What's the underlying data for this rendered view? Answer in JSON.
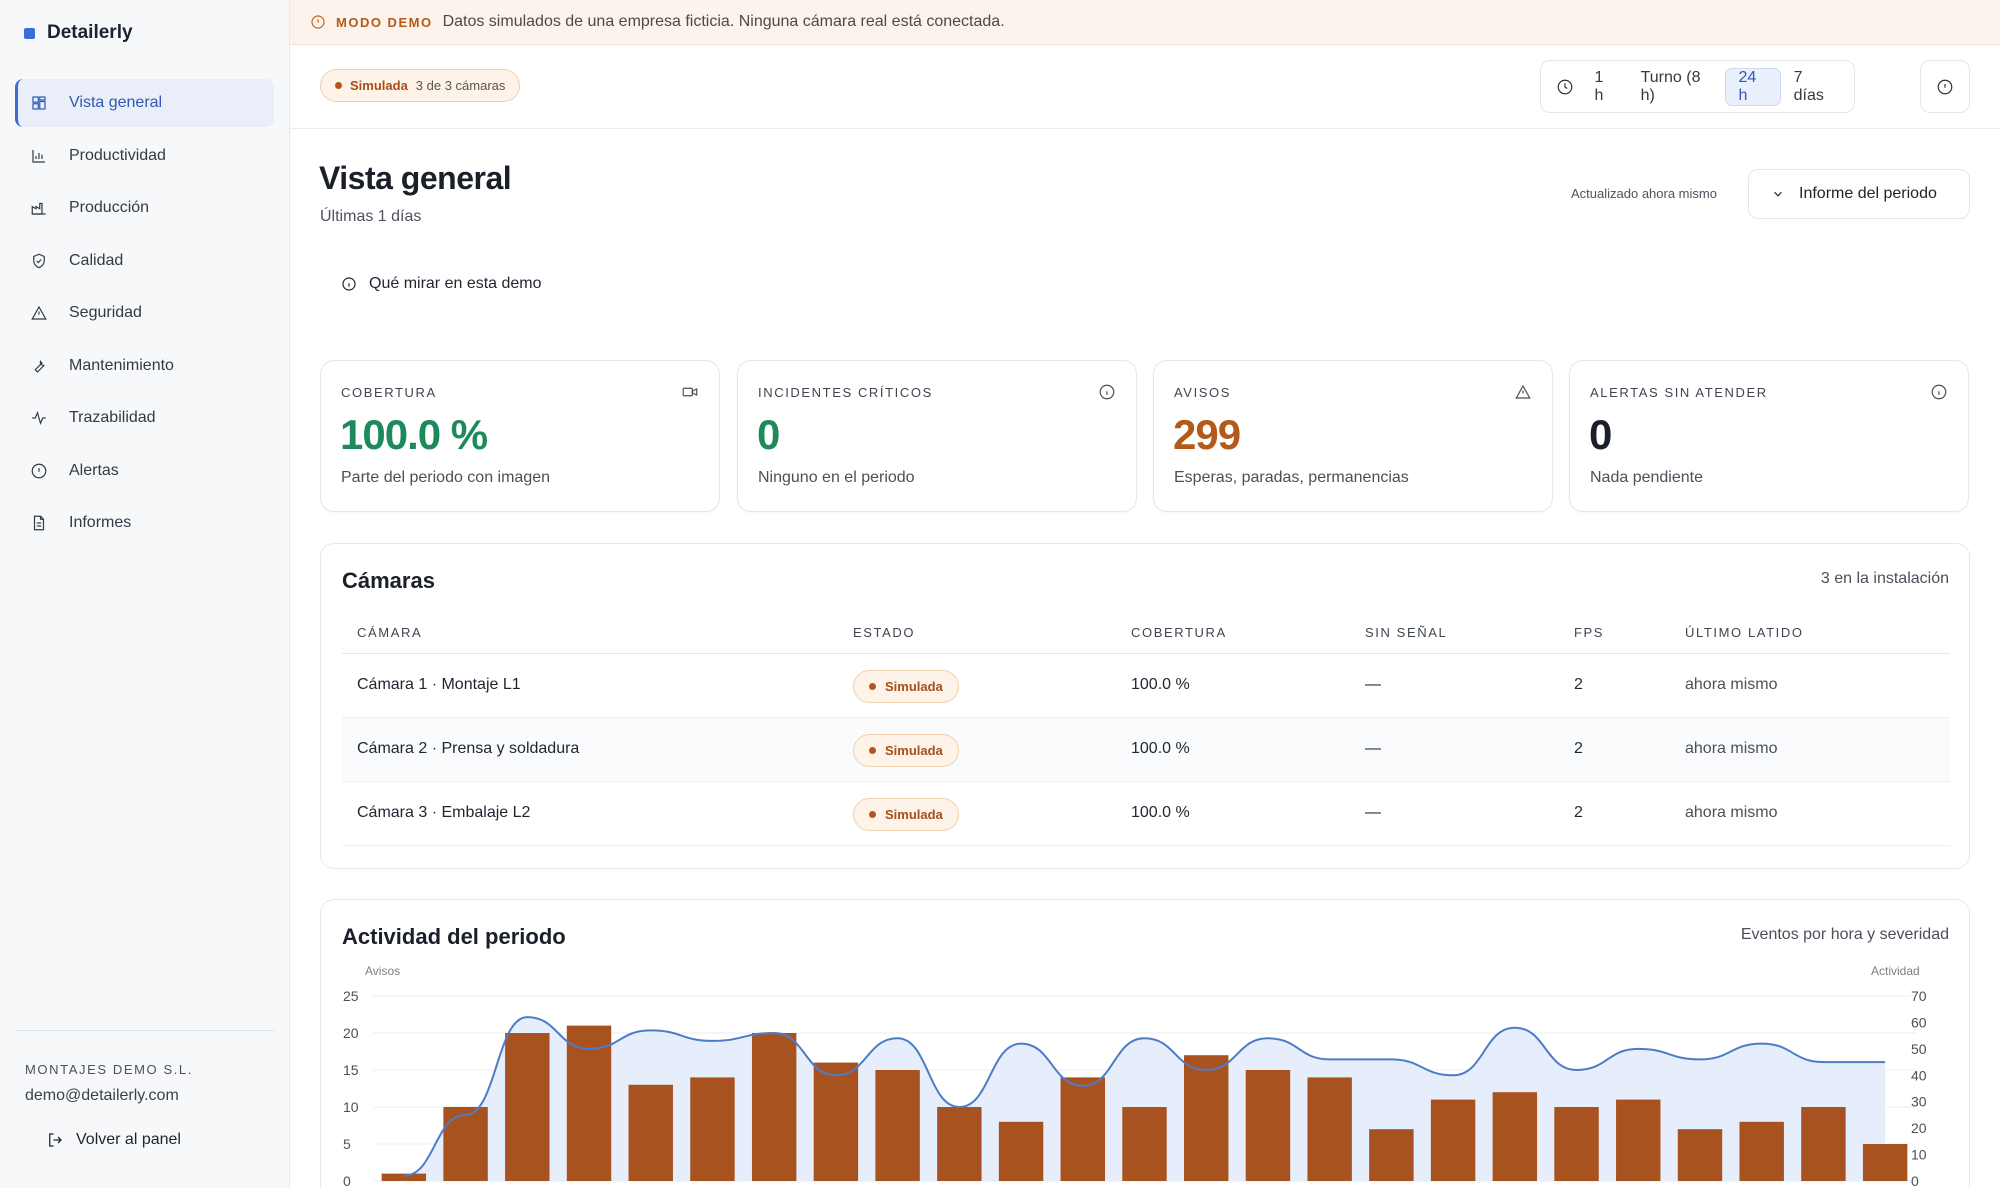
{
  "brand": {
    "name": "Detailerly",
    "color": "#3b6fd8"
  },
  "sidebar": {
    "items": [
      {
        "label": "Vista general",
        "icon": "dashboard-icon",
        "active": true
      },
      {
        "label": "Productividad",
        "icon": "bar-chart-icon"
      },
      {
        "label": "Producción",
        "icon": "factory-icon"
      },
      {
        "label": "Calidad",
        "icon": "shield-check-icon"
      },
      {
        "label": "Seguridad",
        "icon": "warning-triangle-icon"
      },
      {
        "label": "Mantenimiento",
        "icon": "wrench-icon"
      },
      {
        "label": "Trazabilidad",
        "icon": "pulse-icon"
      },
      {
        "label": "Alertas",
        "icon": "alert-circle-icon"
      },
      {
        "label": "Informes",
        "icon": "document-icon"
      }
    ],
    "company": "MONTAJES DEMO S.L.",
    "email": "demo@detailerly.com",
    "back_label": "Volver al panel"
  },
  "banner": {
    "label": "MODO DEMO",
    "text": "Datos simulados de una empresa ficticia. Ninguna cámara real está conectada."
  },
  "topbar": {
    "status_label": "Simulada",
    "status_count": "3 de 3 cámaras",
    "ranges": [
      {
        "label": "1 h"
      },
      {
        "label": "Turno (8 h)"
      },
      {
        "label": "24 h",
        "active": true
      },
      {
        "label": "7 días"
      }
    ]
  },
  "header": {
    "title": "Vista general",
    "subtitle": "Últimas 1 días",
    "updated": "Actualizado ahora mismo",
    "report_label": "Informe del periodo",
    "tip_label": "Qué mirar en esta demo"
  },
  "kpis": [
    {
      "label": "COBERTURA",
      "value": "100.0 %",
      "desc": "Parte del periodo con imagen",
      "color": "#1e8a5c",
      "icon": "video-icon"
    },
    {
      "label": "INCIDENTES CRÍTICOS",
      "value": "0",
      "desc": "Ninguno en el periodo",
      "color": "#1e8a5c",
      "icon": "info-icon"
    },
    {
      "label": "AVISOS",
      "value": "299",
      "desc": "Esperas, paradas, permanencias",
      "color": "#b35a1a",
      "icon": "warning-icon"
    },
    {
      "label": "ALERTAS SIN ATENDER",
      "value": "0",
      "desc": "Nada pendiente",
      "color": "#1a1f29",
      "icon": "info-icon"
    }
  ],
  "cameras": {
    "title": "Cámaras",
    "meta": "3 en la instalación",
    "columns": [
      "CÁMARA",
      "ESTADO",
      "COBERTURA",
      "SIN SEÑAL",
      "FPS",
      "ÚLTIMO LATIDO"
    ],
    "rows": [
      {
        "name": "Cámara 1 · Montaje L1",
        "status": "Simulada",
        "coverage": "100.0 %",
        "no_signal": "—",
        "fps": "2",
        "last": "ahora mismo"
      },
      {
        "name": "Cámara 2 · Prensa y soldadura",
        "status": "Simulada",
        "coverage": "100.0 %",
        "no_signal": "—",
        "fps": "2",
        "last": "ahora mismo"
      },
      {
        "name": "Cámara 3 · Embalaje L2",
        "status": "Simulada",
        "coverage": "100.0 %",
        "no_signal": "—",
        "fps": "2",
        "last": "ahora mismo"
      }
    ]
  },
  "activity": {
    "title": "Actividad del periodo",
    "meta": "Eventos por hora y severidad"
  },
  "chart_data": {
    "type": "bar",
    "title": "Actividad del periodo",
    "ylabel": "Avisos",
    "y2label": "Actividad",
    "ylim": [
      0,
      25
    ],
    "y2lim": [
      0,
      70
    ],
    "yticks": [
      0,
      5,
      10,
      15,
      20,
      25
    ],
    "y2ticks": [
      0,
      10,
      20,
      30,
      40,
      50,
      60,
      70
    ],
    "grid": true,
    "series": [
      {
        "name": "Avisos",
        "type": "bar",
        "color": "#a8531f",
        "values": [
          1,
          10,
          20,
          21,
          13,
          14,
          20,
          16,
          15,
          10,
          8,
          14,
          10,
          17,
          15,
          14,
          7,
          11,
          12,
          10,
          11,
          7,
          8,
          10,
          5
        ]
      },
      {
        "name": "Actividad",
        "type": "area",
        "color": "#4d7cc7",
        "values": [
          2,
          25,
          62,
          50,
          57,
          53,
          56,
          40,
          54,
          28,
          52,
          36,
          54,
          42,
          54,
          46,
          46,
          40,
          58,
          42,
          50,
          46,
          52,
          45,
          45
        ]
      }
    ]
  }
}
